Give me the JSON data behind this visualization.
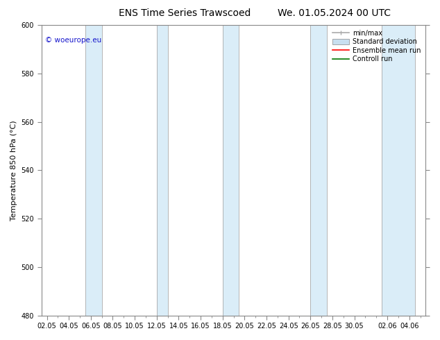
{
  "title_left": "ENS Time Series Trawscoed",
  "title_right": "We. 01.05.2024 00 UTC",
  "ylabel": "Temperature 850 hPa (°C)",
  "ylim": [
    480,
    600
  ],
  "yticks": [
    480,
    500,
    520,
    540,
    560,
    580,
    600
  ],
  "xtick_labels": [
    "02.05",
    "04.05",
    "06.05",
    "08.05",
    "10.05",
    "12.05",
    "14.05",
    "16.05",
    "18.05",
    "20.05",
    "22.05",
    "24.05",
    "26.05",
    "28.05",
    "30.05",
    "02.06",
    "04.06"
  ],
  "xtick_positions": [
    0,
    2,
    4,
    6,
    8,
    10,
    12,
    14,
    16,
    18,
    20,
    22,
    24,
    26,
    28,
    31,
    33
  ],
  "xlim_start": -0.5,
  "xlim_end": 34.5,
  "shaded_bands": [
    {
      "x_start": 3.5,
      "x_end": 5.0
    },
    {
      "x_start": 10.0,
      "x_end": 11.0
    },
    {
      "x_start": 16.0,
      "x_end": 17.5
    },
    {
      "x_start": 24.0,
      "x_end": 25.5
    },
    {
      "x_start": 30.5,
      "x_end": 33.5
    }
  ],
  "band_color": "#daedf8",
  "watermark_text": "© woeurope.eu",
  "watermark_color": "#1515cc",
  "background_color": "#ffffff",
  "plot_bg_color": "#ffffff",
  "legend_entries": [
    "min/max",
    "Standard deviation",
    "Ensemble mean run",
    "Controll run"
  ],
  "minmax_line_color": "#aaaaaa",
  "std_fill_color": "#c8dff0",
  "mean_color": "#ff0000",
  "control_color": "#007700",
  "title_fontsize": 10,
  "label_fontsize": 8,
  "tick_fontsize": 7,
  "legend_fontsize": 7
}
